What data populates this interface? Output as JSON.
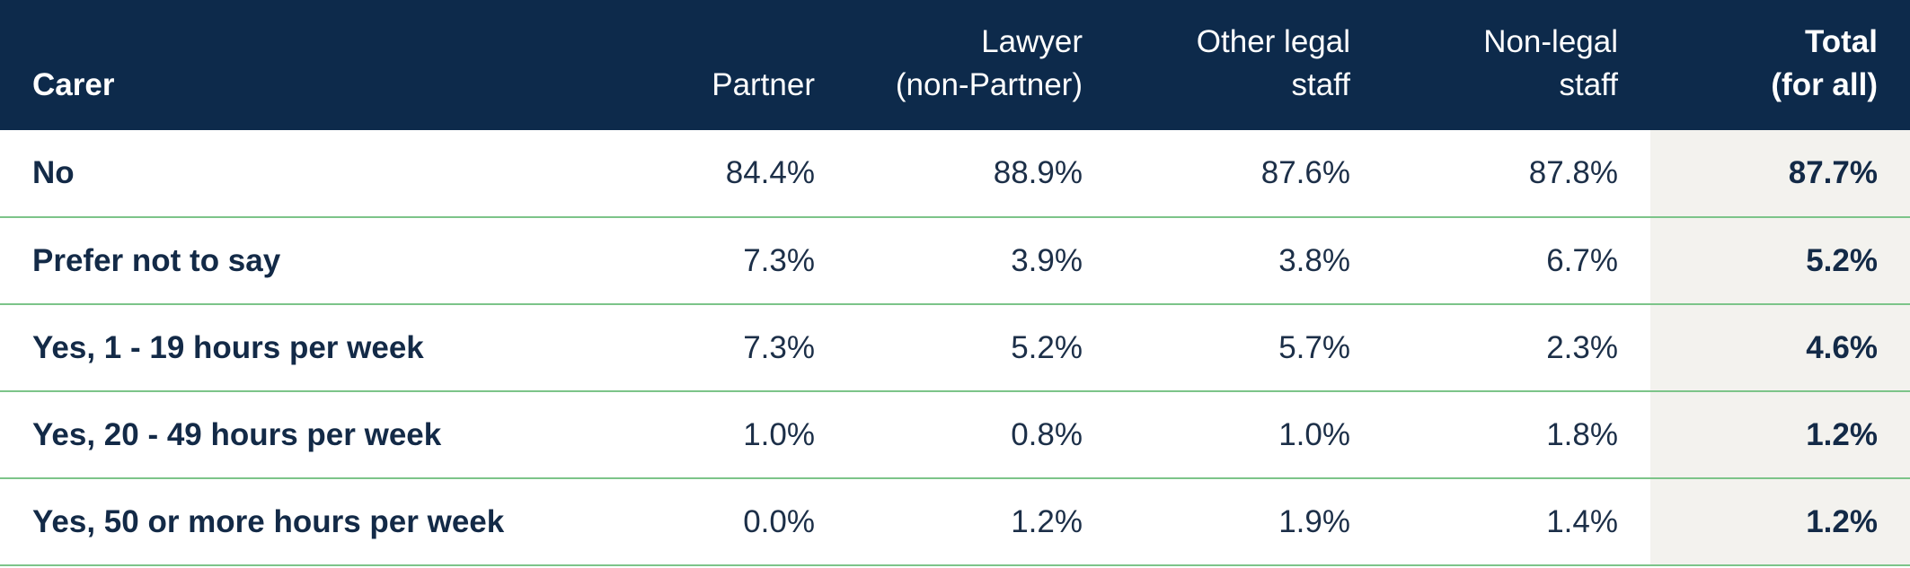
{
  "table": {
    "headers": {
      "label": "Carer",
      "partner": [
        "Partner"
      ],
      "lawyer": [
        "Lawyer",
        "(non-Partner)"
      ],
      "other_legal": [
        "Other legal",
        "staff"
      ],
      "non_legal": [
        "Non-legal",
        "staff"
      ],
      "total": [
        "Total",
        "(for all)"
      ]
    },
    "rows": [
      {
        "label": "No",
        "partner": "84.4%",
        "lawyer": "88.9%",
        "other_legal": "87.6%",
        "non_legal": "87.8%",
        "total": "87.7%"
      },
      {
        "label": "Prefer not to say",
        "partner": "7.3%",
        "lawyer": "3.9%",
        "other_legal": "3.8%",
        "non_legal": "6.7%",
        "total": "5.2%"
      },
      {
        "label": "Yes, 1 - 19 hours per week",
        "partner": "7.3%",
        "lawyer": "5.2%",
        "other_legal": "5.7%",
        "non_legal": "2.3%",
        "total": "4.6%"
      },
      {
        "label": "Yes, 20 - 49 hours per week",
        "partner": "1.0%",
        "lawyer": "0.8%",
        "other_legal": "1.0%",
        "non_legal": "1.8%",
        "total": "1.2%"
      },
      {
        "label": "Yes, 50 or more hours per week",
        "partner": "0.0%",
        "lawyer": "1.2%",
        "other_legal": "1.9%",
        "non_legal": "1.4%",
        "total": "1.2%"
      }
    ]
  },
  "colors": {
    "header_bg": "#0d2a4b",
    "row_divider": "#7cc489",
    "total_column_bg": "#f3f2ee"
  }
}
